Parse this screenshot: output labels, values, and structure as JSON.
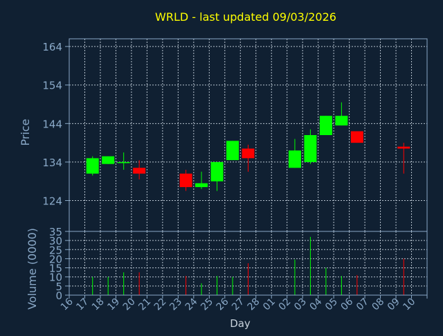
{
  "chart_data": {
    "type": "candlestick",
    "title": "WRLD - last updated 09/03/2026",
    "price_axis": {
      "label": "Price",
      "ylim": [
        116,
        166
      ],
      "ticks": [
        124,
        134,
        144,
        154,
        164
      ],
      "grid": true
    },
    "volume_axis": {
      "label": "Volume (0000)",
      "ylim": [
        0,
        35
      ],
      "ticks": [
        0,
        5,
        10,
        15,
        20,
        25,
        30,
        35
      ],
      "grid": true
    },
    "x_axis": {
      "label": "Day",
      "tick_labels": [
        "16",
        "17",
        "18",
        "19",
        "20",
        "21",
        "22",
        "23",
        "24",
        "25",
        "26",
        "27",
        "28",
        "01",
        "02",
        "03",
        "04",
        "05",
        "06",
        "07",
        "08",
        "09",
        "10"
      ]
    },
    "colors": {
      "up": "#00ff00",
      "down": "#ff0000",
      "title": "#ffff00",
      "axis_text": "#8aa9c8",
      "frame": "#8aa9c8",
      "grid": "#b8c4d0",
      "background": "#102032"
    },
    "candles": [
      {
        "day": "17",
        "open": 131,
        "high": 135.5,
        "low": 130.5,
        "close": 135,
        "volume": 10
      },
      {
        "day": "18",
        "open": 133.5,
        "high": 135.5,
        "low": 133.5,
        "close": 135.5,
        "volume": 10
      },
      {
        "day": "19",
        "open": 134,
        "high": 136.5,
        "low": 132,
        "close": 134,
        "volume": 12.5
      },
      {
        "day": "20",
        "open": 132.5,
        "high": 134.5,
        "low": 129.5,
        "close": 131,
        "volume": 12.5
      },
      {
        "day": "23",
        "open": 131,
        "high": 132,
        "low": 126.5,
        "close": 127.5,
        "volume": 10.5
      },
      {
        "day": "24",
        "open": 127.5,
        "high": 131.5,
        "low": 127,
        "close": 128.5,
        "volume": 6.5
      },
      {
        "day": "25",
        "open": 129,
        "high": 134,
        "low": 126.5,
        "close": 134,
        "volume": 10.5
      },
      {
        "day": "26",
        "open": 134.5,
        "high": 139.5,
        "low": 134.5,
        "close": 139.5,
        "volume": 10
      },
      {
        "day": "27",
        "open": 137.5,
        "high": 138.5,
        "low": 131.5,
        "close": 135,
        "volume": 17.5
      },
      {
        "day": "02",
        "open": 132.5,
        "high": 140,
        "low": 132.5,
        "close": 137,
        "volume": 19.5
      },
      {
        "day": "03",
        "open": 134,
        "high": 142.5,
        "low": 133.5,
        "close": 141,
        "volume": 32
      },
      {
        "day": "04",
        "open": 141,
        "high": 146,
        "low": 141,
        "close": 146,
        "volume": 15
      },
      {
        "day": "05",
        "open": 143.5,
        "high": 149.5,
        "low": 143.5,
        "close": 146,
        "volume": 10.5
      },
      {
        "day": "06",
        "open": 142,
        "high": 142,
        "low": 139,
        "close": 139,
        "volume": 11
      },
      {
        "day": "09",
        "open": 138,
        "high": 139,
        "low": 131,
        "close": 137.5,
        "volume": 20
      }
    ]
  }
}
